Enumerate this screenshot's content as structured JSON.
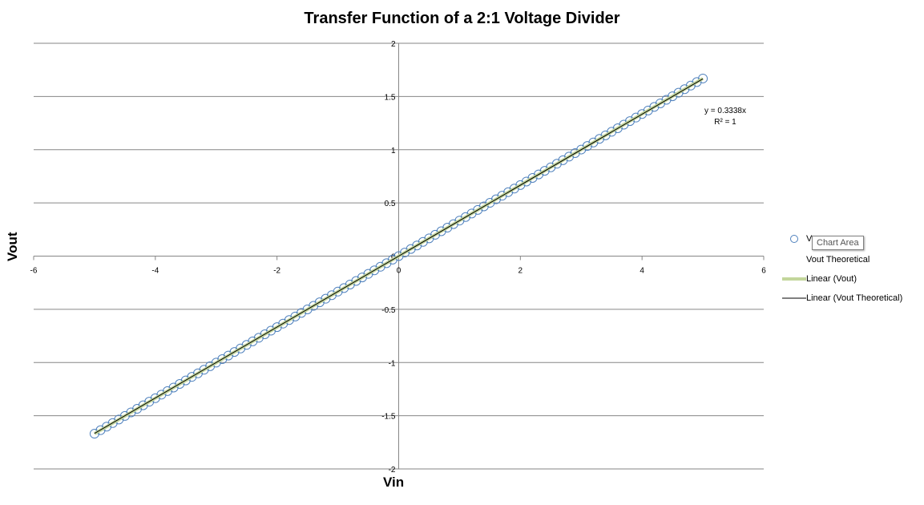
{
  "chart_data": {
    "type": "scatter",
    "title": "Transfer Function of a 2:1 Voltage Divider",
    "xlabel": "Vin",
    "ylabel": "Vout",
    "xlim": [
      -6,
      6
    ],
    "ylim": [
      -2,
      2
    ],
    "x_ticks": [
      -6,
      -4,
      -2,
      0,
      2,
      4,
      6
    ],
    "y_ticks": [
      2,
      1.5,
      1,
      0.5,
      0,
      -0.5,
      -1,
      -1.5,
      -2
    ],
    "grid": "horizontal",
    "legend_position": "right",
    "series": [
      {
        "name": "Vout",
        "marker": "open-circle",
        "color": "#4f81bd",
        "x_range": [
          -5,
          5
        ],
        "x_step": 0.1,
        "slope": 0.3338
      },
      {
        "name": "Vout Theoretical",
        "marker": "none",
        "color": "#000000"
      },
      {
        "name": "Linear (Vout)",
        "style": "trendline",
        "color": "#c3d69b",
        "slope": 0.3338
      },
      {
        "name": "Linear (Vout Theoretical)",
        "style": "trendline",
        "color": "#000000",
        "slope": 0.3333
      }
    ],
    "annotations": [
      "y = 0.3338x",
      "R² = 1"
    ]
  },
  "legend": {
    "items": [
      "V",
      "Vout Theoretical",
      "Linear (Vout)",
      "Linear (Vout Theoretical)"
    ]
  },
  "tooltip": {
    "text": "Chart Area"
  }
}
